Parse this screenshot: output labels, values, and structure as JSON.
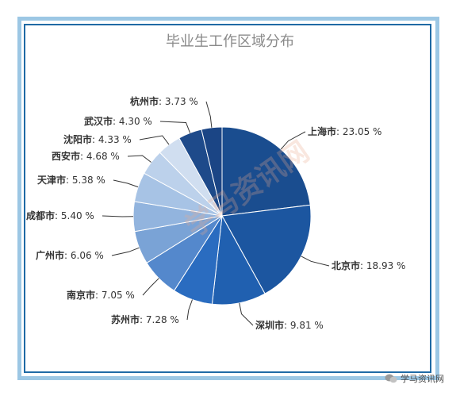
{
  "chart_data": {
    "type": "pie",
    "title": "毕业生工作区域分布",
    "slices": [
      {
        "label": "上海市",
        "value": 23.05,
        "display": "23.05 %",
        "color": "#1a4d8f"
      },
      {
        "label": "北京市",
        "value": 18.93,
        "display": "18.93 %",
        "color": "#1c56a0"
      },
      {
        "label": "深圳市",
        "value": 9.81,
        "display": "9.81 %",
        "color": "#2060b0"
      },
      {
        "label": "苏州市",
        "value": 7.28,
        "display": "7.28 %",
        "color": "#2a6cc0"
      },
      {
        "label": "南京市",
        "value": 7.05,
        "display": "7.05 %",
        "color": "#5488cc"
      },
      {
        "label": "广州市",
        "value": 6.06,
        "display": "6.06 %",
        "color": "#7aa3d6"
      },
      {
        "label": "成都市",
        "value": 5.4,
        "display": "5.40 %",
        "color": "#92b4de"
      },
      {
        "label": "天津市",
        "value": 5.38,
        "display": "5.38 %",
        "color": "#a7c3e5"
      },
      {
        "label": "西安市",
        "value": 4.68,
        "display": "4.68 %",
        "color": "#bcd1eb"
      },
      {
        "label": "沈阳市",
        "value": 4.33,
        "display": "4.33 %",
        "color": "#d0def0"
      },
      {
        "label": "武汉市",
        "value": 4.3,
        "display": "4.30 %",
        "color": "#1e4a8a"
      },
      {
        "label": "杭州市",
        "value": 3.73,
        "display": "3.73 %",
        "color": "#1b4585"
      }
    ]
  },
  "watermark": {
    "text": "学马资讯网"
  },
  "footer": {
    "account": "学马资讯网"
  }
}
